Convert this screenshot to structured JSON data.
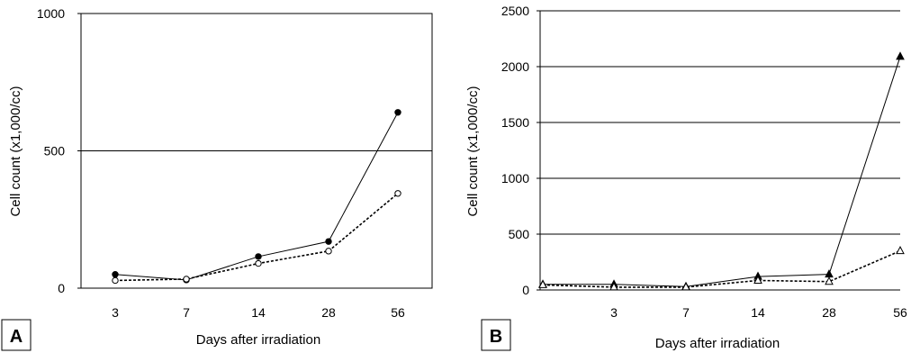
{
  "chart_data": [
    {
      "panel_label": "A",
      "type": "line",
      "xlabel": "Days after irradiation",
      "ylabel": "Cell count (x1,000/cc)",
      "categories": [
        "3",
        "7",
        "14",
        "28",
        "56"
      ],
      "ylim": [
        0,
        1000
      ],
      "yticks": [
        "0",
        "500",
        "1000"
      ],
      "grid": "horizontal at 500",
      "series": [
        {
          "marker": "filled-circle",
          "line_style": "solid",
          "values": [
            50,
            30,
            115,
            170,
            640
          ]
        },
        {
          "marker": "open-circle",
          "line_style": "dotted",
          "values": [
            28,
            33,
            90,
            135,
            345
          ]
        }
      ]
    },
    {
      "panel_label": "B",
      "type": "line",
      "xlabel": "Days after irradiation",
      "ylabel": "Cell count (x1,000/cc)",
      "categories": [
        "",
        "3",
        "7",
        "14",
        "28",
        "56"
      ],
      "ylim": [
        0,
        2500
      ],
      "yticks": [
        "0",
        "500",
        "1000",
        "1500",
        "2000",
        "2500"
      ],
      "grid": "horizontal at every 500",
      "series": [
        {
          "marker": "filled-triangle",
          "line_style": "solid",
          "values": [
            50,
            50,
            30,
            120,
            140,
            2090
          ]
        },
        {
          "marker": "open-triangle",
          "line_style": "dotted",
          "values": [
            45,
            25,
            25,
            85,
            75,
            350
          ]
        }
      ]
    }
  ]
}
